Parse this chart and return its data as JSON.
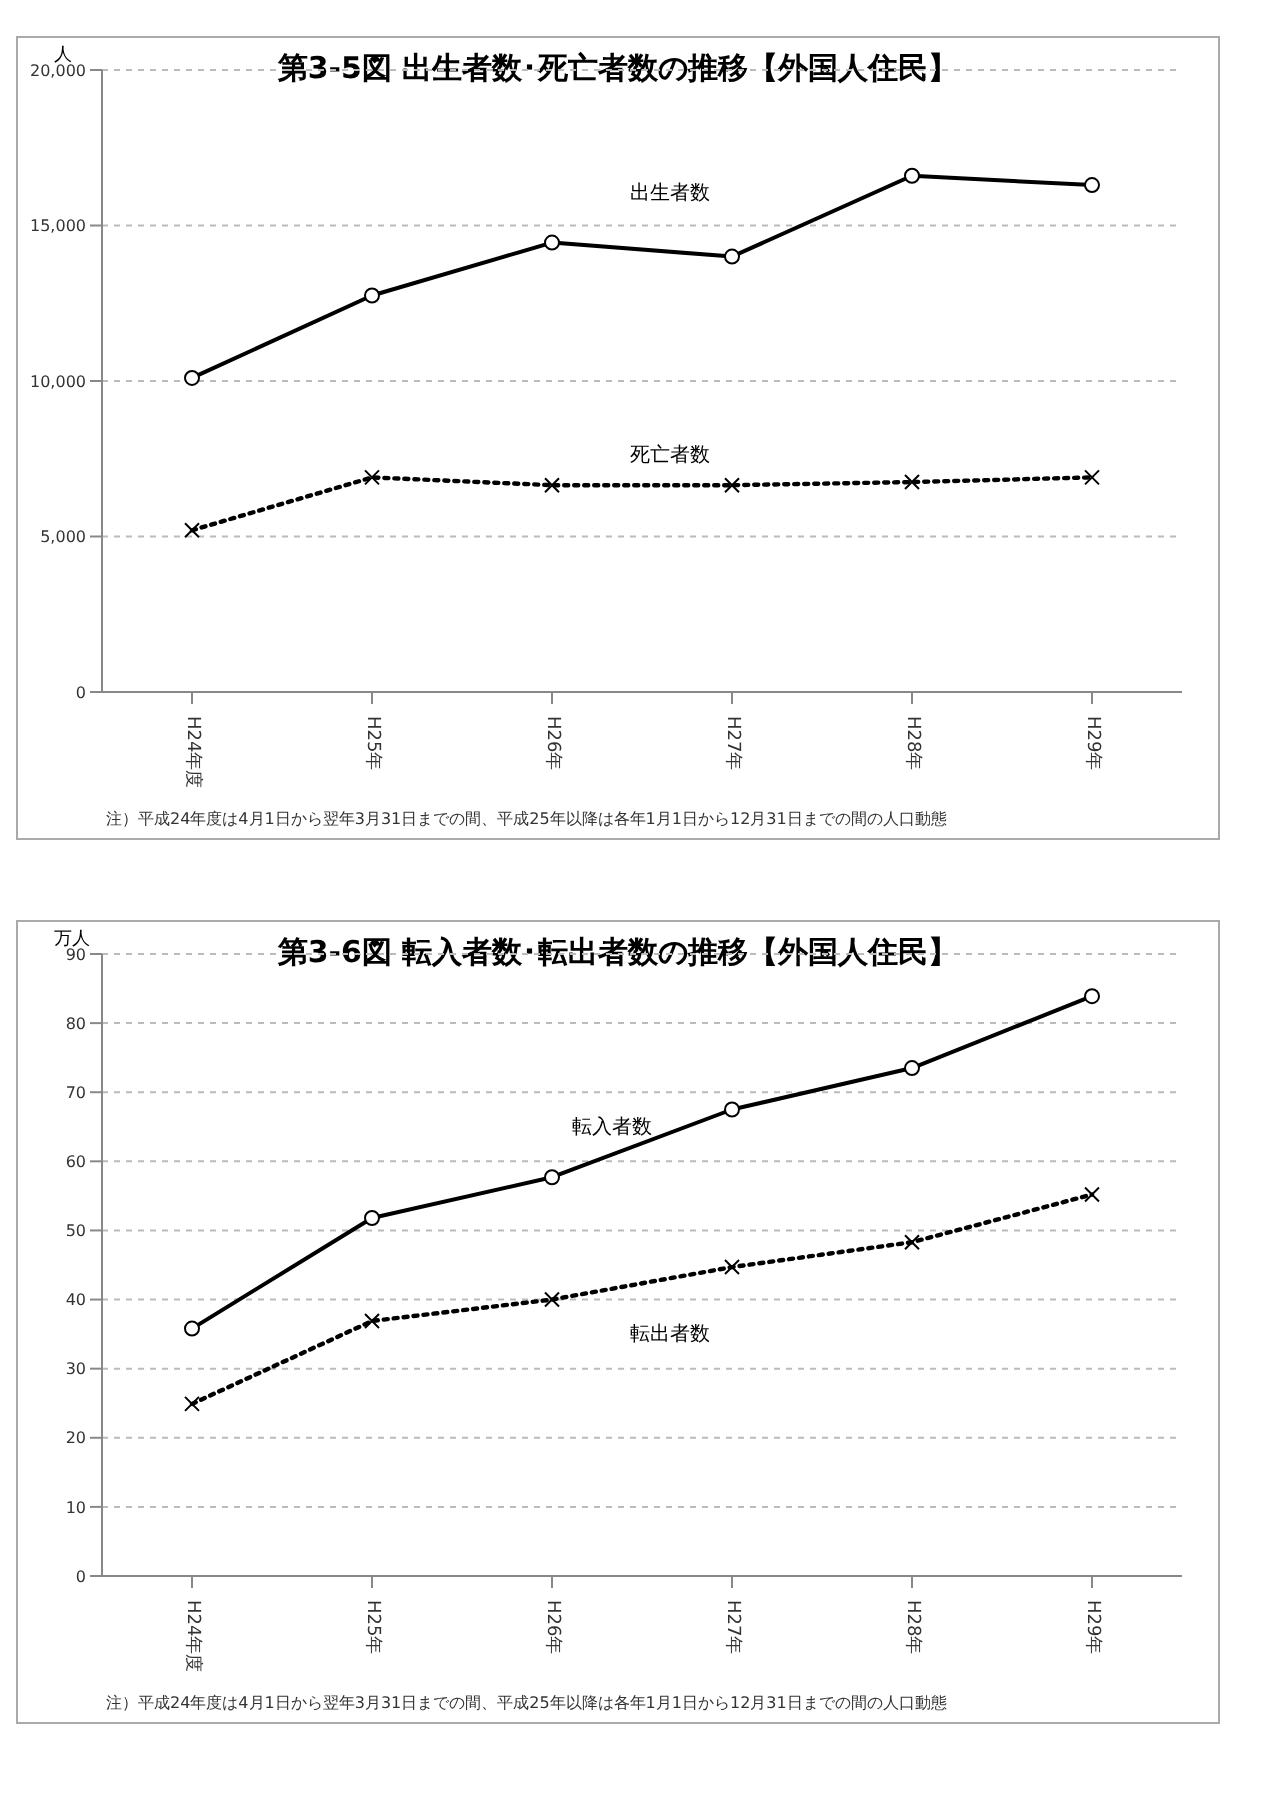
{
  "chart_data": [
    {
      "type": "line",
      "title": "第3-5図  出生者数･死亡者数の推移【外国人住民】",
      "ylabel": "人",
      "categories": [
        "H24年度",
        "H25年",
        "H26年",
        "H27年",
        "H28年",
        "H29年"
      ],
      "series": [
        {
          "name": "出生者数",
          "color": "#000000",
          "values": [
            10100,
            12750,
            14450,
            14000,
            16600,
            16300
          ],
          "marker": "circle",
          "line_style": "solid"
        },
        {
          "name": "死亡者数",
          "color": "#000000",
          "values": [
            5200,
            6900,
            6650,
            6650,
            6750,
            6900
          ],
          "marker": "cross",
          "line_style": "dotted"
        }
      ],
      "ylim": [
        0,
        20000
      ],
      "yticks": [
        {
          "value": 0,
          "label": "0"
        },
        {
          "value": 5000,
          "label": "5,000"
        },
        {
          "value": 10000,
          "label": "10,000"
        },
        {
          "value": 15000,
          "label": "15,000"
        },
        {
          "value": 20000,
          "label": "20,000"
        }
      ],
      "grid": "y",
      "legend": false,
      "annotations": [
        "注）平成24年度は4月1日から翌年3月31日までの間、平成25年以降は各年1月1日から12月31日までの間の人口動態"
      ]
    },
    {
      "type": "line",
      "title": "第3-6図  転入者数･転出者数の推移【外国人住民】",
      "ylabel": "万人",
      "categories": [
        "H24年度",
        "H25年",
        "H26年",
        "H27年",
        "H28年",
        "H29年"
      ],
      "series": [
        {
          "name": "転入者数",
          "color": "#000000",
          "values": [
            35.8,
            51.8,
            57.7,
            67.5,
            73.5,
            83.9
          ],
          "marker": "circle",
          "line_style": "solid"
        },
        {
          "name": "転出者数",
          "color": "#000000",
          "values": [
            24.9,
            36.9,
            40.0,
            44.7,
            48.3,
            55.2
          ],
          "marker": "cross",
          "line_style": "dotted"
        }
      ],
      "ylim": [
        0,
        90
      ],
      "yticks": [
        0,
        10,
        20,
        30,
        40,
        50,
        60,
        70,
        80,
        90
      ],
      "grid": "y",
      "legend": false,
      "annotations": [
        "注）平成24年度は4月1日から翌年3月31日までの間、平成25年以降は各年1月1日から12月31日までの間の人口動態"
      ]
    }
  ]
}
